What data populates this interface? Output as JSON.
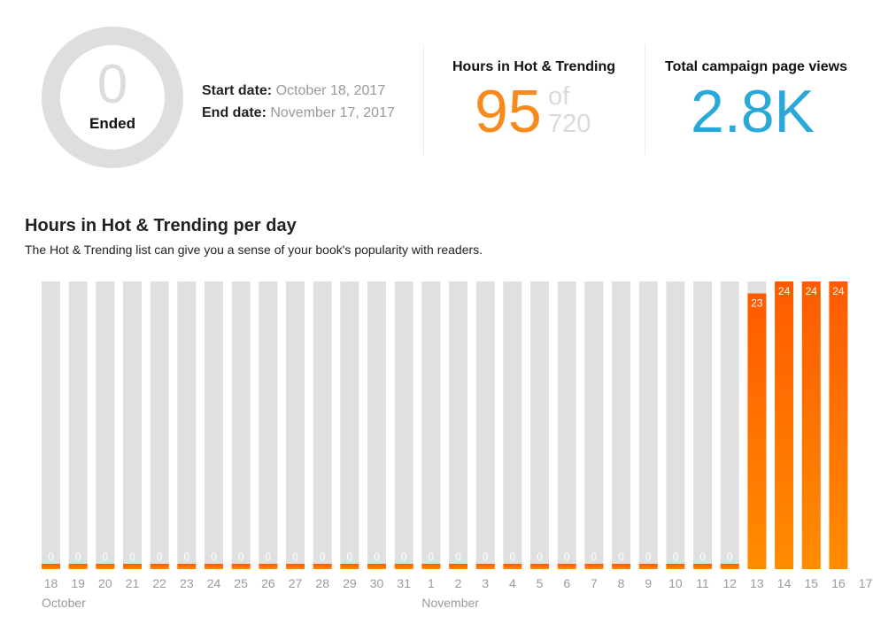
{
  "status": {
    "count": "0",
    "label": "Ended"
  },
  "dates": {
    "start_label": "Start date:",
    "start_value": "October 18, 2017",
    "end_label": "End date:",
    "end_value": "November 17, 2017"
  },
  "hours_stat": {
    "title": "Hours in Hot & Trending",
    "value": "95",
    "of_word": "of",
    "total": "720"
  },
  "views_stat": {
    "title": "Total campaign page views",
    "value": "2.8K"
  },
  "chart": {
    "title": "Hours in Hot & Trending per day",
    "subtitle": "The Hot & Trending list can give you a sense of your book's popularity with readers."
  },
  "colors": {
    "accent_orange": "#f78a1d",
    "views_blue": "#2aa8d8",
    "bar_track": "#e0e0e0",
    "bar_fill_top": "#ff5a00",
    "bar_fill_bottom": "#ff8c00"
  },
  "chart_data": {
    "type": "bar",
    "title": "Hours in Hot & Trending per day",
    "categories": [
      "18",
      "19",
      "20",
      "21",
      "22",
      "23",
      "24",
      "25",
      "26",
      "27",
      "28",
      "29",
      "30",
      "31",
      "1",
      "2",
      "3",
      "4",
      "5",
      "6",
      "7",
      "8",
      "9",
      "10",
      "11",
      "12",
      "13",
      "14",
      "15",
      "16"
    ],
    "axis_end_label": "17",
    "month_labels": [
      {
        "label": "October",
        "category_index": 0
      },
      {
        "label": "November",
        "category_index": 14
      }
    ],
    "values": [
      0,
      0,
      0,
      0,
      0,
      0,
      0,
      0,
      0,
      0,
      0,
      0,
      0,
      0,
      0,
      0,
      0,
      0,
      0,
      0,
      0,
      0,
      0,
      0,
      0,
      0,
      23,
      24,
      24,
      24
    ],
    "ylim": [
      0,
      24
    ],
    "grid": false,
    "data_labels": true
  }
}
